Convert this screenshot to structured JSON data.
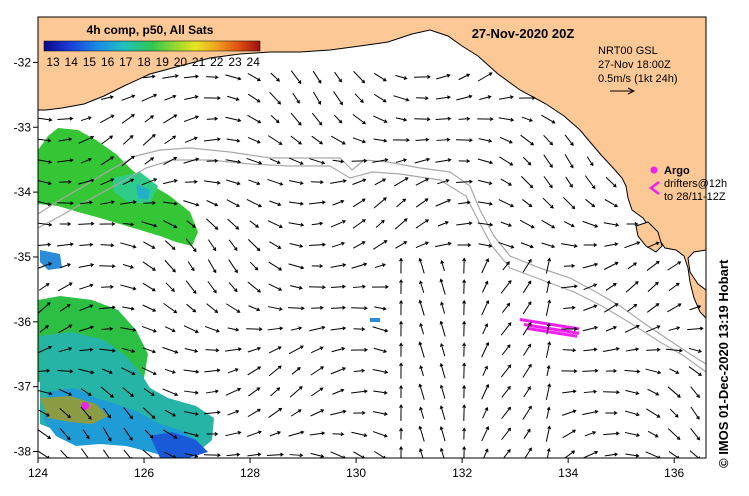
{
  "map": {
    "title": "27-Nov-2020 20Z",
    "x_ticks": [
      "124",
      "126",
      "128",
      "130",
      "132",
      "134",
      "136"
    ],
    "x_tick_values": [
      124,
      126,
      128,
      130,
      132,
      134,
      136
    ],
    "y_ticks": [
      "-32",
      "-33",
      "-34",
      "-35",
      "-36",
      "-37",
      "-38"
    ],
    "y_tick_values": [
      -32,
      -33,
      -34,
      -35,
      -36,
      -37,
      -38
    ],
    "x_range": [
      124,
      136.6
    ],
    "y_range": [
      -38.1,
      -31.3
    ],
    "colorbar": {
      "title": "4h comp, p50, All Sats",
      "labels": [
        "13",
        "14",
        "15",
        "16",
        "17",
        "18",
        "19",
        "20",
        "21",
        "22",
        "23",
        "24"
      ]
    },
    "current_legend": {
      "line1": "NRT00 GSL",
      "line2": "27-Nov 18:00Z",
      "line3": "0.5m/s (1kt 24h)"
    },
    "argo_legend": {
      "title": "Argo",
      "line1": "drifters@12h",
      "line2": "to 28/11-12Z"
    },
    "credit": "© IMOS 01-Dec-2020 13:19 Hobart",
    "colors": {
      "land": "#fbc896",
      "coast": "#000000",
      "bathymetry": "#a9a9a9",
      "drifter": "#ee22ee",
      "sst_cool": "#1a3cd8",
      "sst_mid": "#20b4b4",
      "sst_warm": "#34c634"
    }
  }
}
